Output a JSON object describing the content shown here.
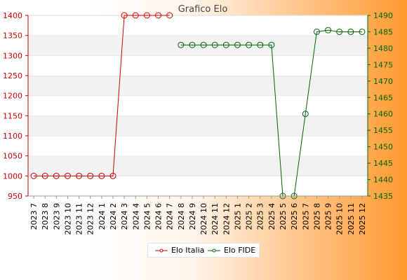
{
  "chart_data": {
    "type": "line",
    "title": "Grafico Elo",
    "categories": [
      "2023 7",
      "2023 8",
      "2023 9",
      "2023 10",
      "2023 11",
      "2023 12",
      "2024 1",
      "2024 2",
      "2024 3",
      "2024 4",
      "2024 5",
      "2024 6",
      "2024 7",
      "2024 8",
      "2024 9",
      "2024 10",
      "2024 11",
      "2024 12",
      "2025 1",
      "2025 2",
      "2025 3",
      "2025 4",
      "2025 5",
      "2025 6",
      "2025 7",
      "2025 8",
      "2025 9",
      "2025 10",
      "2025 11",
      "2025 12"
    ],
    "y_left": {
      "min": 950,
      "max": 1400,
      "ticks": [
        950,
        1000,
        1050,
        1100,
        1150,
        1200,
        1250,
        1300,
        1350,
        1400
      ],
      "color": "#cc0000"
    },
    "y_right": {
      "min": 1435,
      "max": 1490,
      "ticks": [
        1435,
        1440,
        1445,
        1450,
        1455,
        1460,
        1465,
        1470,
        1475,
        1480,
        1485,
        1490
      ],
      "color": "#006600"
    },
    "grid": "horizontal alternating bands",
    "legend_position": "bottom-center",
    "series": [
      {
        "name": "Elo Italia",
        "axis": "left",
        "color": "#cc0000",
        "values": [
          1000,
          1000,
          1000,
          1000,
          1000,
          1000,
          1000,
          1000,
          1400,
          1400,
          1400,
          1400,
          1400,
          null,
          null,
          null,
          null,
          null,
          null,
          null,
          null,
          null,
          null,
          null,
          null,
          null,
          null,
          null,
          null,
          null
        ]
      },
      {
        "name": "Elo FIDE",
        "axis": "right",
        "color": "#006600",
        "values": [
          null,
          null,
          null,
          null,
          null,
          null,
          null,
          null,
          null,
          null,
          null,
          null,
          null,
          1481,
          1481,
          1481,
          1481,
          1481,
          1481,
          1481,
          1481,
          1481,
          1435,
          1435,
          1460,
          1485,
          1485.5,
          1485,
          1485,
          1485
        ]
      }
    ]
  }
}
